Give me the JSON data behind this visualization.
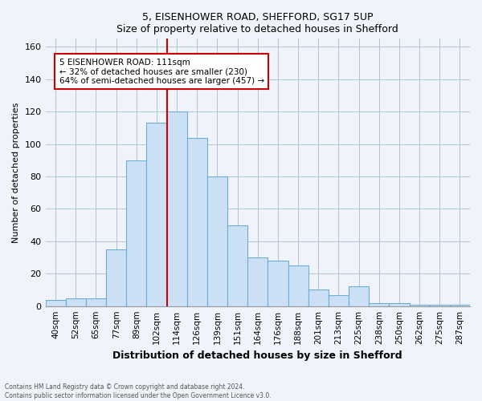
{
  "title_line1": "5, EISENHOWER ROAD, SHEFFORD, SG17 5UP",
  "title_line2": "Size of property relative to detached houses in Shefford",
  "xlabel": "Distribution of detached houses by size in Shefford",
  "ylabel": "Number of detached properties",
  "footnote": "Contains HM Land Registry data © Crown copyright and database right 2024.\nContains public sector information licensed under the Open Government Licence v3.0.",
  "bar_labels": [
    "40sqm",
    "52sqm",
    "65sqm",
    "77sqm",
    "89sqm",
    "102sqm",
    "114sqm",
    "126sqm",
    "139sqm",
    "151sqm",
    "164sqm",
    "176sqm",
    "188sqm",
    "201sqm",
    "213sqm",
    "225sqm",
    "238sqm",
    "250sqm",
    "262sqm",
    "275sqm",
    "287sqm"
  ],
  "bar_values": [
    4,
    5,
    5,
    35,
    90,
    113,
    120,
    104,
    80,
    50,
    30,
    28,
    25,
    10,
    7,
    12,
    2,
    2,
    1,
    1,
    1
  ],
  "bar_color": "#cce0f5",
  "bar_edge_color": "#6aaed6",
  "ylim": [
    0,
    165
  ],
  "yticks": [
    0,
    20,
    40,
    60,
    80,
    100,
    120,
    140,
    160
  ],
  "vline_x": 5.5,
  "vline_color": "#cc0000",
  "annotation_text": "5 EISENHOWER ROAD: 111sqm\n← 32% of detached houses are smaller (230)\n64% of semi-detached houses are larger (457) →",
  "annotation_box_color": "#ffffff",
  "annotation_border_color": "#cc0000",
  "bg_color": "#f0f4fa"
}
